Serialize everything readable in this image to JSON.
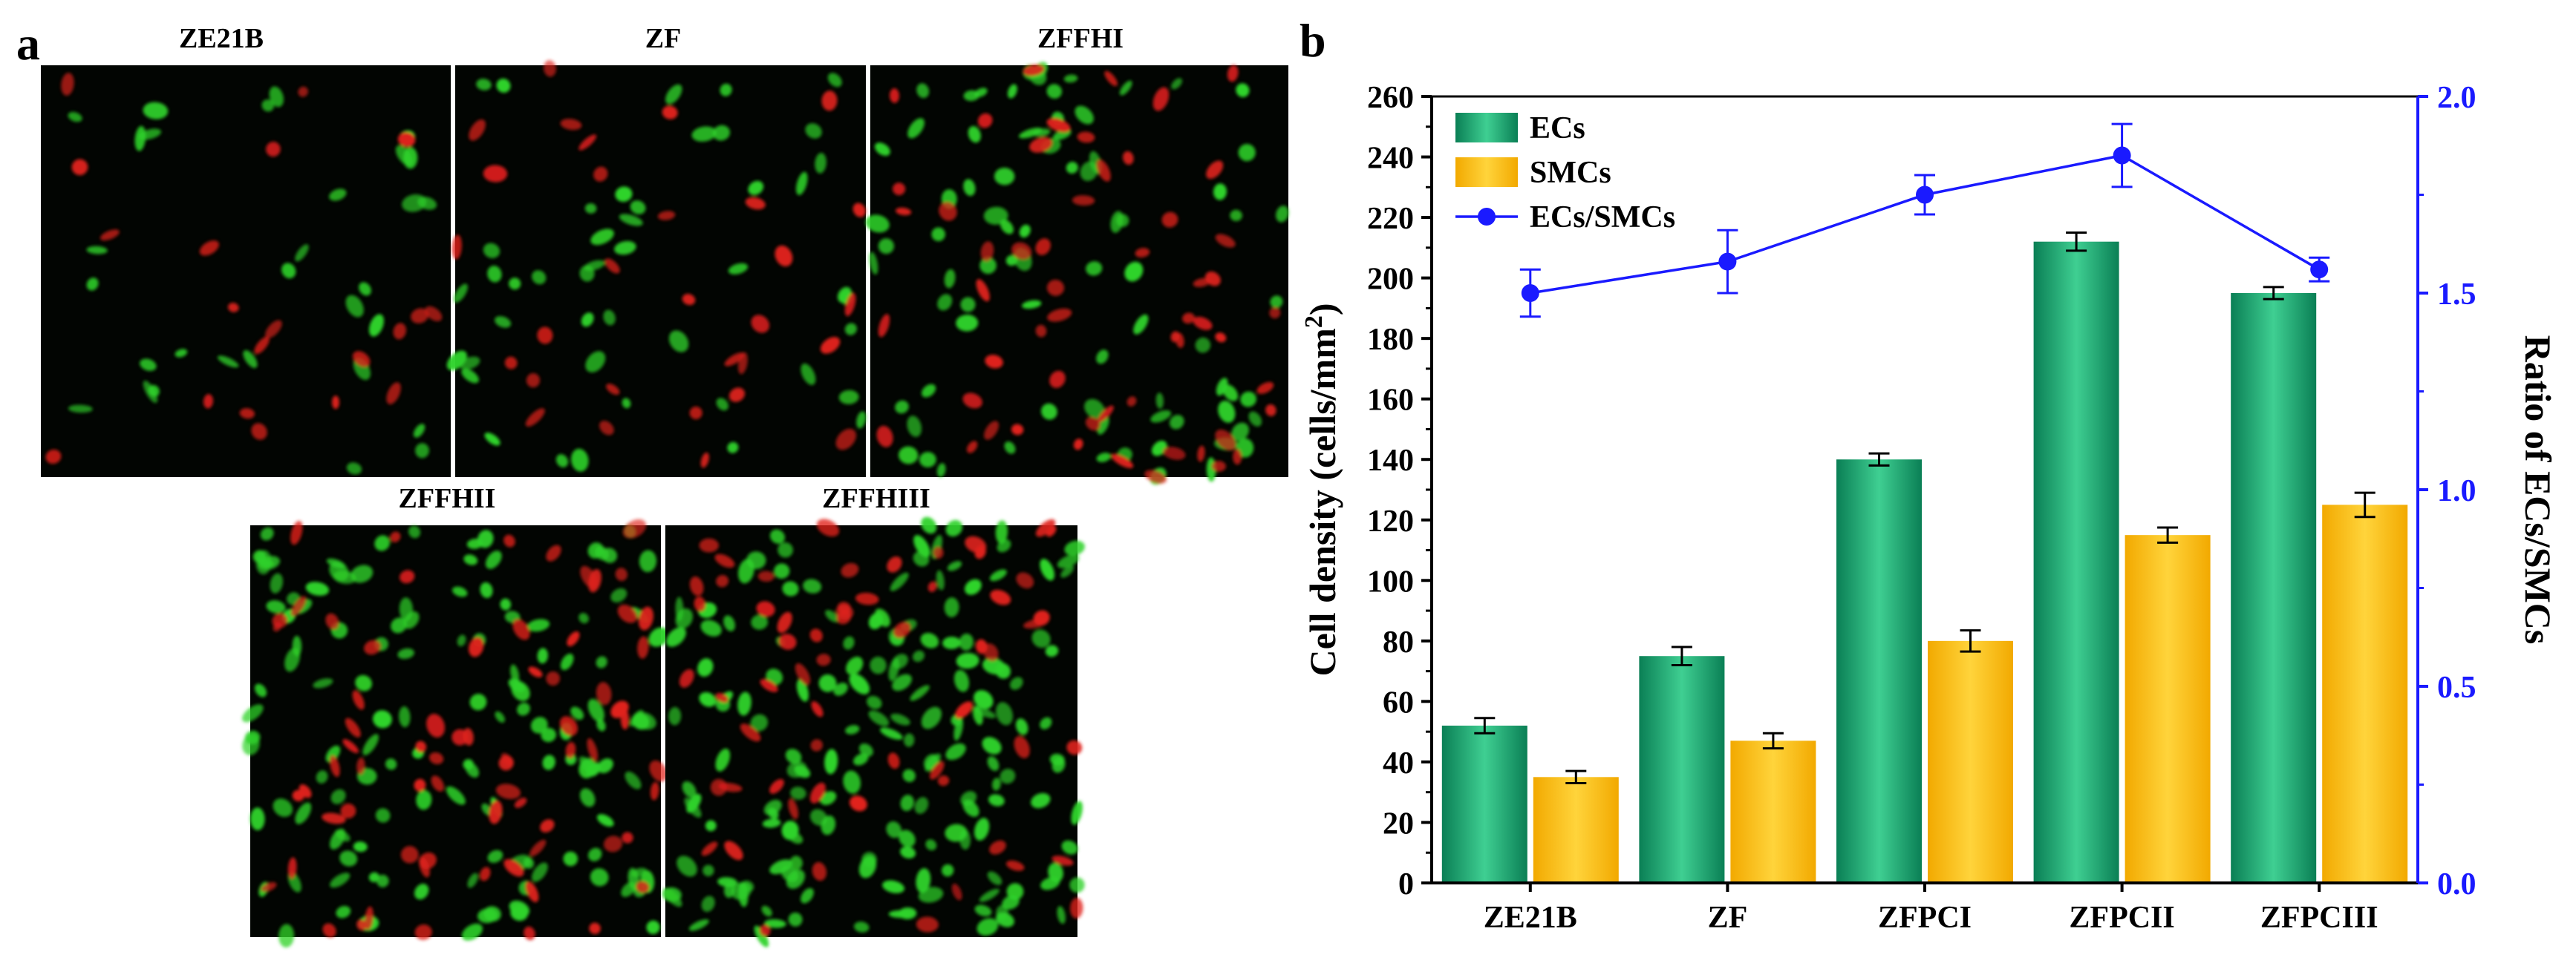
{
  "panel_a": {
    "letter": "a",
    "images": [
      {
        "title": "ZE21B",
        "green_cells": 30,
        "red_cells": 20
      },
      {
        "title": "ZF",
        "green_cells": 45,
        "red_cells": 30
      },
      {
        "title": "ZFFHI",
        "green_cells": 80,
        "red_cells": 55
      },
      {
        "title": "ZFFHII",
        "green_cells": 130,
        "red_cells": 70
      },
      {
        "title": "ZFFHIII",
        "green_cells": 170,
        "red_cells": 60
      }
    ],
    "colors": {
      "green_cell": "#2fd32a",
      "red_cell": "#e0211c",
      "background": "#020502"
    }
  },
  "panel_b": {
    "letter": "b"
  },
  "chart_data": {
    "type": "bar",
    "categories": [
      "ZE21B",
      "ZF",
      "ZFPCI",
      "ZFPCII",
      "ZFPCIII"
    ],
    "series": [
      {
        "name": "ECs",
        "type": "bar",
        "axis": "left",
        "color": "#1fa673",
        "values": [
          52,
          75,
          140,
          212,
          195
        ],
        "errors": [
          2.5,
          3,
          2,
          3,
          2
        ]
      },
      {
        "name": "SMCs",
        "type": "bar",
        "axis": "left",
        "color": "#f5b800",
        "values": [
          35,
          47,
          80,
          115,
          125
        ],
        "errors": [
          2,
          2.5,
          3.5,
          2.5,
          4
        ]
      },
      {
        "name": "ECs/SMCs",
        "type": "line",
        "axis": "right",
        "color": "#1a1aff",
        "values": [
          1.5,
          1.58,
          1.75,
          1.85,
          1.56
        ],
        "errors": [
          0.06,
          0.08,
          0.05,
          0.08,
          0.03
        ]
      }
    ],
    "ylabel": "Cell density (cells/mm",
    "ylabel_sup": "2",
    "ylabel_close": ")",
    "y2label": "Ratio of ECs/SMCs",
    "ylim": [
      0,
      260
    ],
    "y2lim": [
      0.0,
      2.0
    ],
    "yticks": [
      "0",
      "20",
      "40",
      "60",
      "80",
      "100",
      "120",
      "140",
      "160",
      "180",
      "200",
      "220",
      "240",
      "260"
    ],
    "y2ticks": [
      "0.0",
      "0.5",
      "1.0",
      "1.5",
      "2.0"
    ],
    "legend_position": "top-left",
    "grid": false
  }
}
